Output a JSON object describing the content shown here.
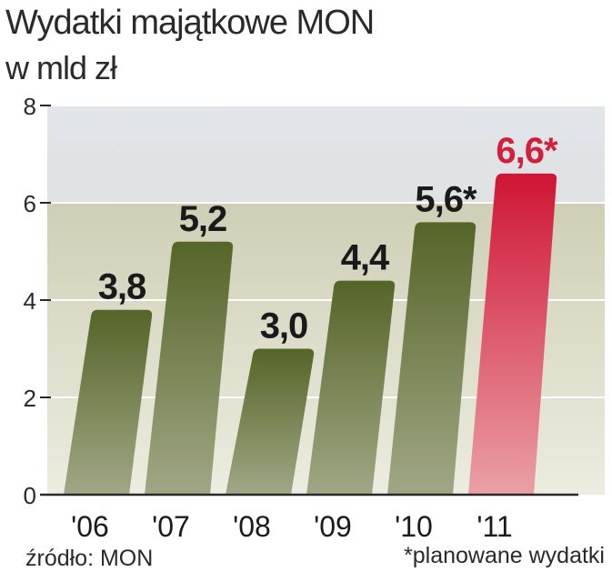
{
  "chart_data": {
    "type": "bar",
    "title": "Wydatki majątkowe MON",
    "subtitle": "w mld zł",
    "categories": [
      "'06",
      "'07",
      "'08",
      "'09",
      "'10",
      "'11"
    ],
    "values": [
      3.8,
      5.2,
      3.0,
      4.4,
      5.6,
      6.6
    ],
    "value_labels": [
      "3,8",
      "5,2",
      "3,0",
      "4,4",
      "5,6*",
      "6,6*"
    ],
    "ylim": [
      0,
      8
    ],
    "yticks": [
      0,
      2,
      4,
      6,
      8
    ],
    "ytick_labels": [
      "0",
      "2",
      "4",
      "6",
      "8"
    ],
    "grid": true,
    "highlight_index": 5,
    "colors": {
      "bar": "#5b6a2e",
      "bar_light": "#9ca27a",
      "highlight": "#d31f3e",
      "highlight_light": "#e48b92",
      "highlight_label": "#d31f3e",
      "label": "#1a1a1a"
    },
    "source": "źródło: MON",
    "footnote": "*planowane wydatki"
  }
}
